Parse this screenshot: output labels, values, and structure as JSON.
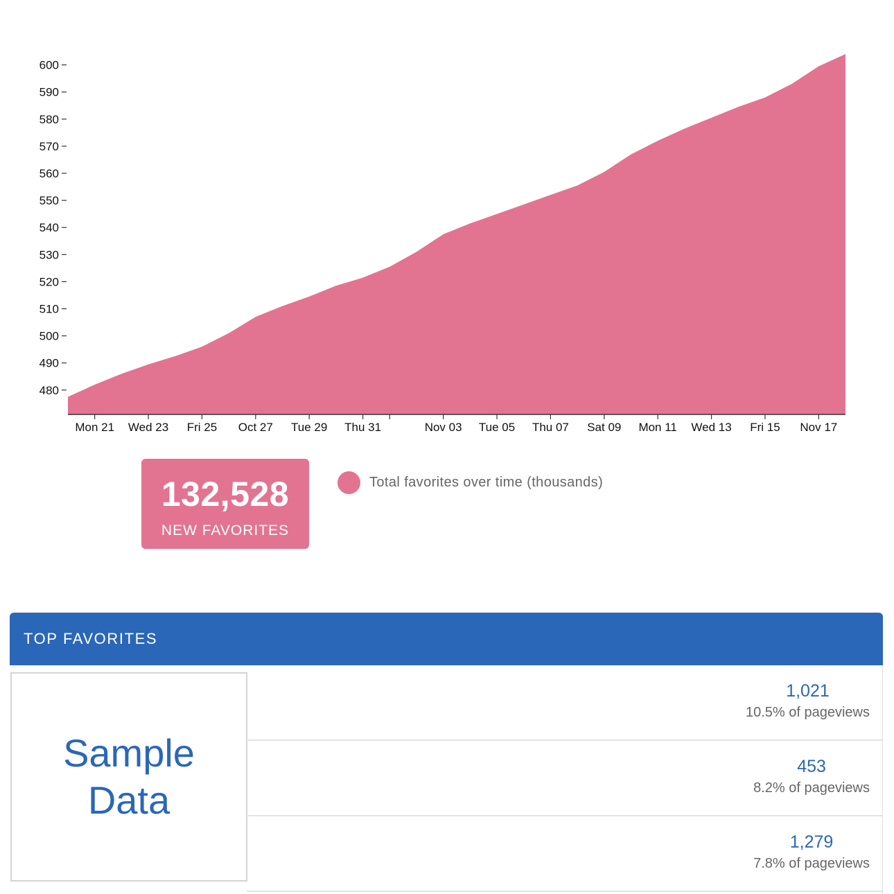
{
  "colors": {
    "area": "#e27492",
    "accent": "#2a67b8",
    "white": "#ffffff"
  },
  "chart_data": {
    "type": "area",
    "title": "",
    "xlabel": "",
    "ylabel": "",
    "x_tick_labels": [
      "Mon 21",
      "Wed 23",
      "Fri 25",
      "Oct 27",
      "Tue 29",
      "Thu 31",
      "",
      "Nov 03",
      "Tue 05",
      "Thu 07",
      "Sat 09",
      "Mon 11",
      "Wed 13",
      "Fri 15",
      "Nov 17"
    ],
    "x_tick_dates": [
      "2024-10-21",
      "2024-10-23",
      "2024-10-25",
      "2024-10-27",
      "2024-10-29",
      "2024-10-31",
      "2024-11-01",
      "2024-11-03",
      "2024-11-05",
      "2024-11-07",
      "2024-11-09",
      "2024-11-11",
      "2024-11-13",
      "2024-11-15",
      "2024-11-17"
    ],
    "y_ticks": [
      480,
      490,
      500,
      510,
      520,
      530,
      540,
      550,
      560,
      570,
      580,
      590,
      600
    ],
    "ylim": [
      471,
      604
    ],
    "xlim": [
      "2024-10-20",
      "2024-11-18"
    ],
    "grid": false,
    "legend_position": "right of stat box",
    "series": [
      {
        "name": "Total favorites over time (thousands)",
        "x": [
          "2024-10-20",
          "2024-10-21",
          "2024-10-22",
          "2024-10-23",
          "2024-10-24",
          "2024-10-25",
          "2024-10-26",
          "2024-10-27",
          "2024-10-28",
          "2024-10-29",
          "2024-10-30",
          "2024-10-31",
          "2024-11-01",
          "2024-11-02",
          "2024-11-03",
          "2024-11-04",
          "2024-11-05",
          "2024-11-06",
          "2024-11-07",
          "2024-11-08",
          "2024-11-09",
          "2024-11-10",
          "2024-11-11",
          "2024-11-12",
          "2024-11-13",
          "2024-11-14",
          "2024-11-15",
          "2024-11-16",
          "2024-11-17",
          "2024-11-18"
        ],
        "values": [
          477.5,
          482,
          486,
          489.5,
          492.5,
          496,
          501,
          507,
          511,
          514.5,
          518.5,
          521.5,
          525.5,
          531,
          537.5,
          541.5,
          545,
          548.5,
          552,
          555.5,
          560.5,
          567,
          572,
          576.5,
          580.5,
          584.5,
          588,
          593,
          599.5,
          604
        ]
      }
    ]
  },
  "stat": {
    "value": "132,528",
    "label": "NEW FAVORITES"
  },
  "legend": {
    "label": "Total favorites over time (thousands)"
  },
  "panel": {
    "title": "TOP FAVORITES",
    "image_text_line1": "Sample",
    "image_text_line2": "Data",
    "rows": [
      {
        "count": "1,021",
        "pct": "10.5% of pageviews"
      },
      {
        "count": "453",
        "pct": "8.2% of pageviews"
      },
      {
        "count": "1,279",
        "pct": "7.8% of pageviews"
      }
    ]
  }
}
